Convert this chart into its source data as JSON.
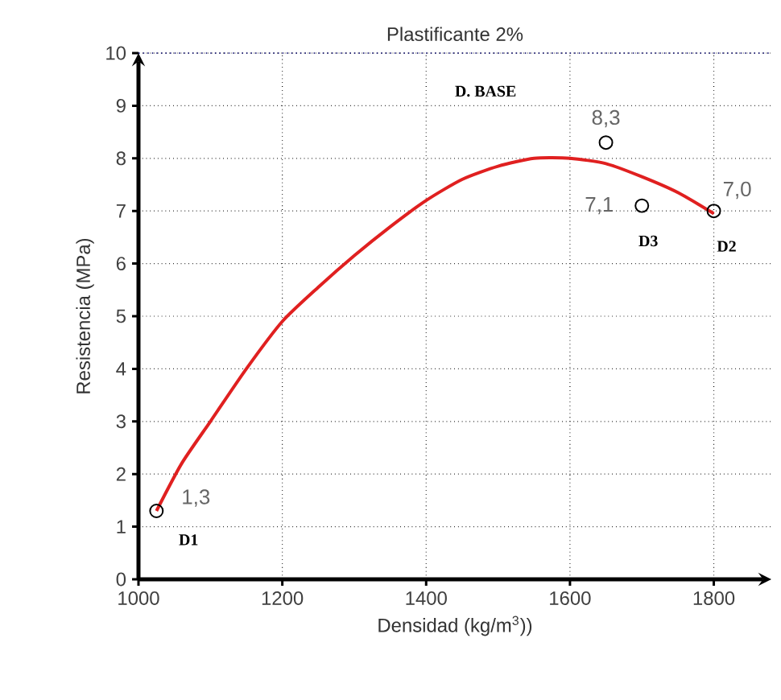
{
  "chart_data": {
    "type": "scatter",
    "title": "Plastificante 2%",
    "xlabel": "Densidad (kg/m$^{3}$))",
    "ylabel": "Resistencia (MPa)",
    "series": [
      {
        "type": "line",
        "color": "#e02020",
        "marker": "none",
        "x": [
          1025,
          1060,
          1100,
          1150,
          1200,
          1250,
          1300,
          1350,
          1400,
          1450,
          1500,
          1550,
          1600,
          1650,
          1700,
          1750,
          1800
        ],
        "values": [
          1.3,
          2.2,
          3.0,
          4.0,
          4.9,
          5.55,
          6.15,
          6.7,
          7.2,
          7.6,
          7.85,
          8.0,
          8.0,
          7.9,
          7.65,
          7.35,
          6.95
        ]
      },
      {
        "type": "scatter",
        "color": "#000000",
        "marker": "circle",
        "x": [
          1025,
          1650,
          1700,
          1800
        ],
        "values": [
          1.3,
          8.3,
          7.1,
          7.0
        ],
        "value_labels": [
          "1,3",
          "8,3",
          "7,1",
          "7,0"
        ]
      }
    ],
    "annotations": [
      "D1",
      "D. BASE",
      "D3",
      "D2"
    ],
    "xlim": [
      1000,
      1880
    ],
    "ylim": [
      0,
      10
    ],
    "xticks": [
      1000,
      1200,
      1400,
      1600,
      1800
    ],
    "yticks": [
      0,
      1,
      2,
      3,
      4,
      5,
      6,
      7,
      8,
      9,
      10
    ],
    "grid": true
  }
}
